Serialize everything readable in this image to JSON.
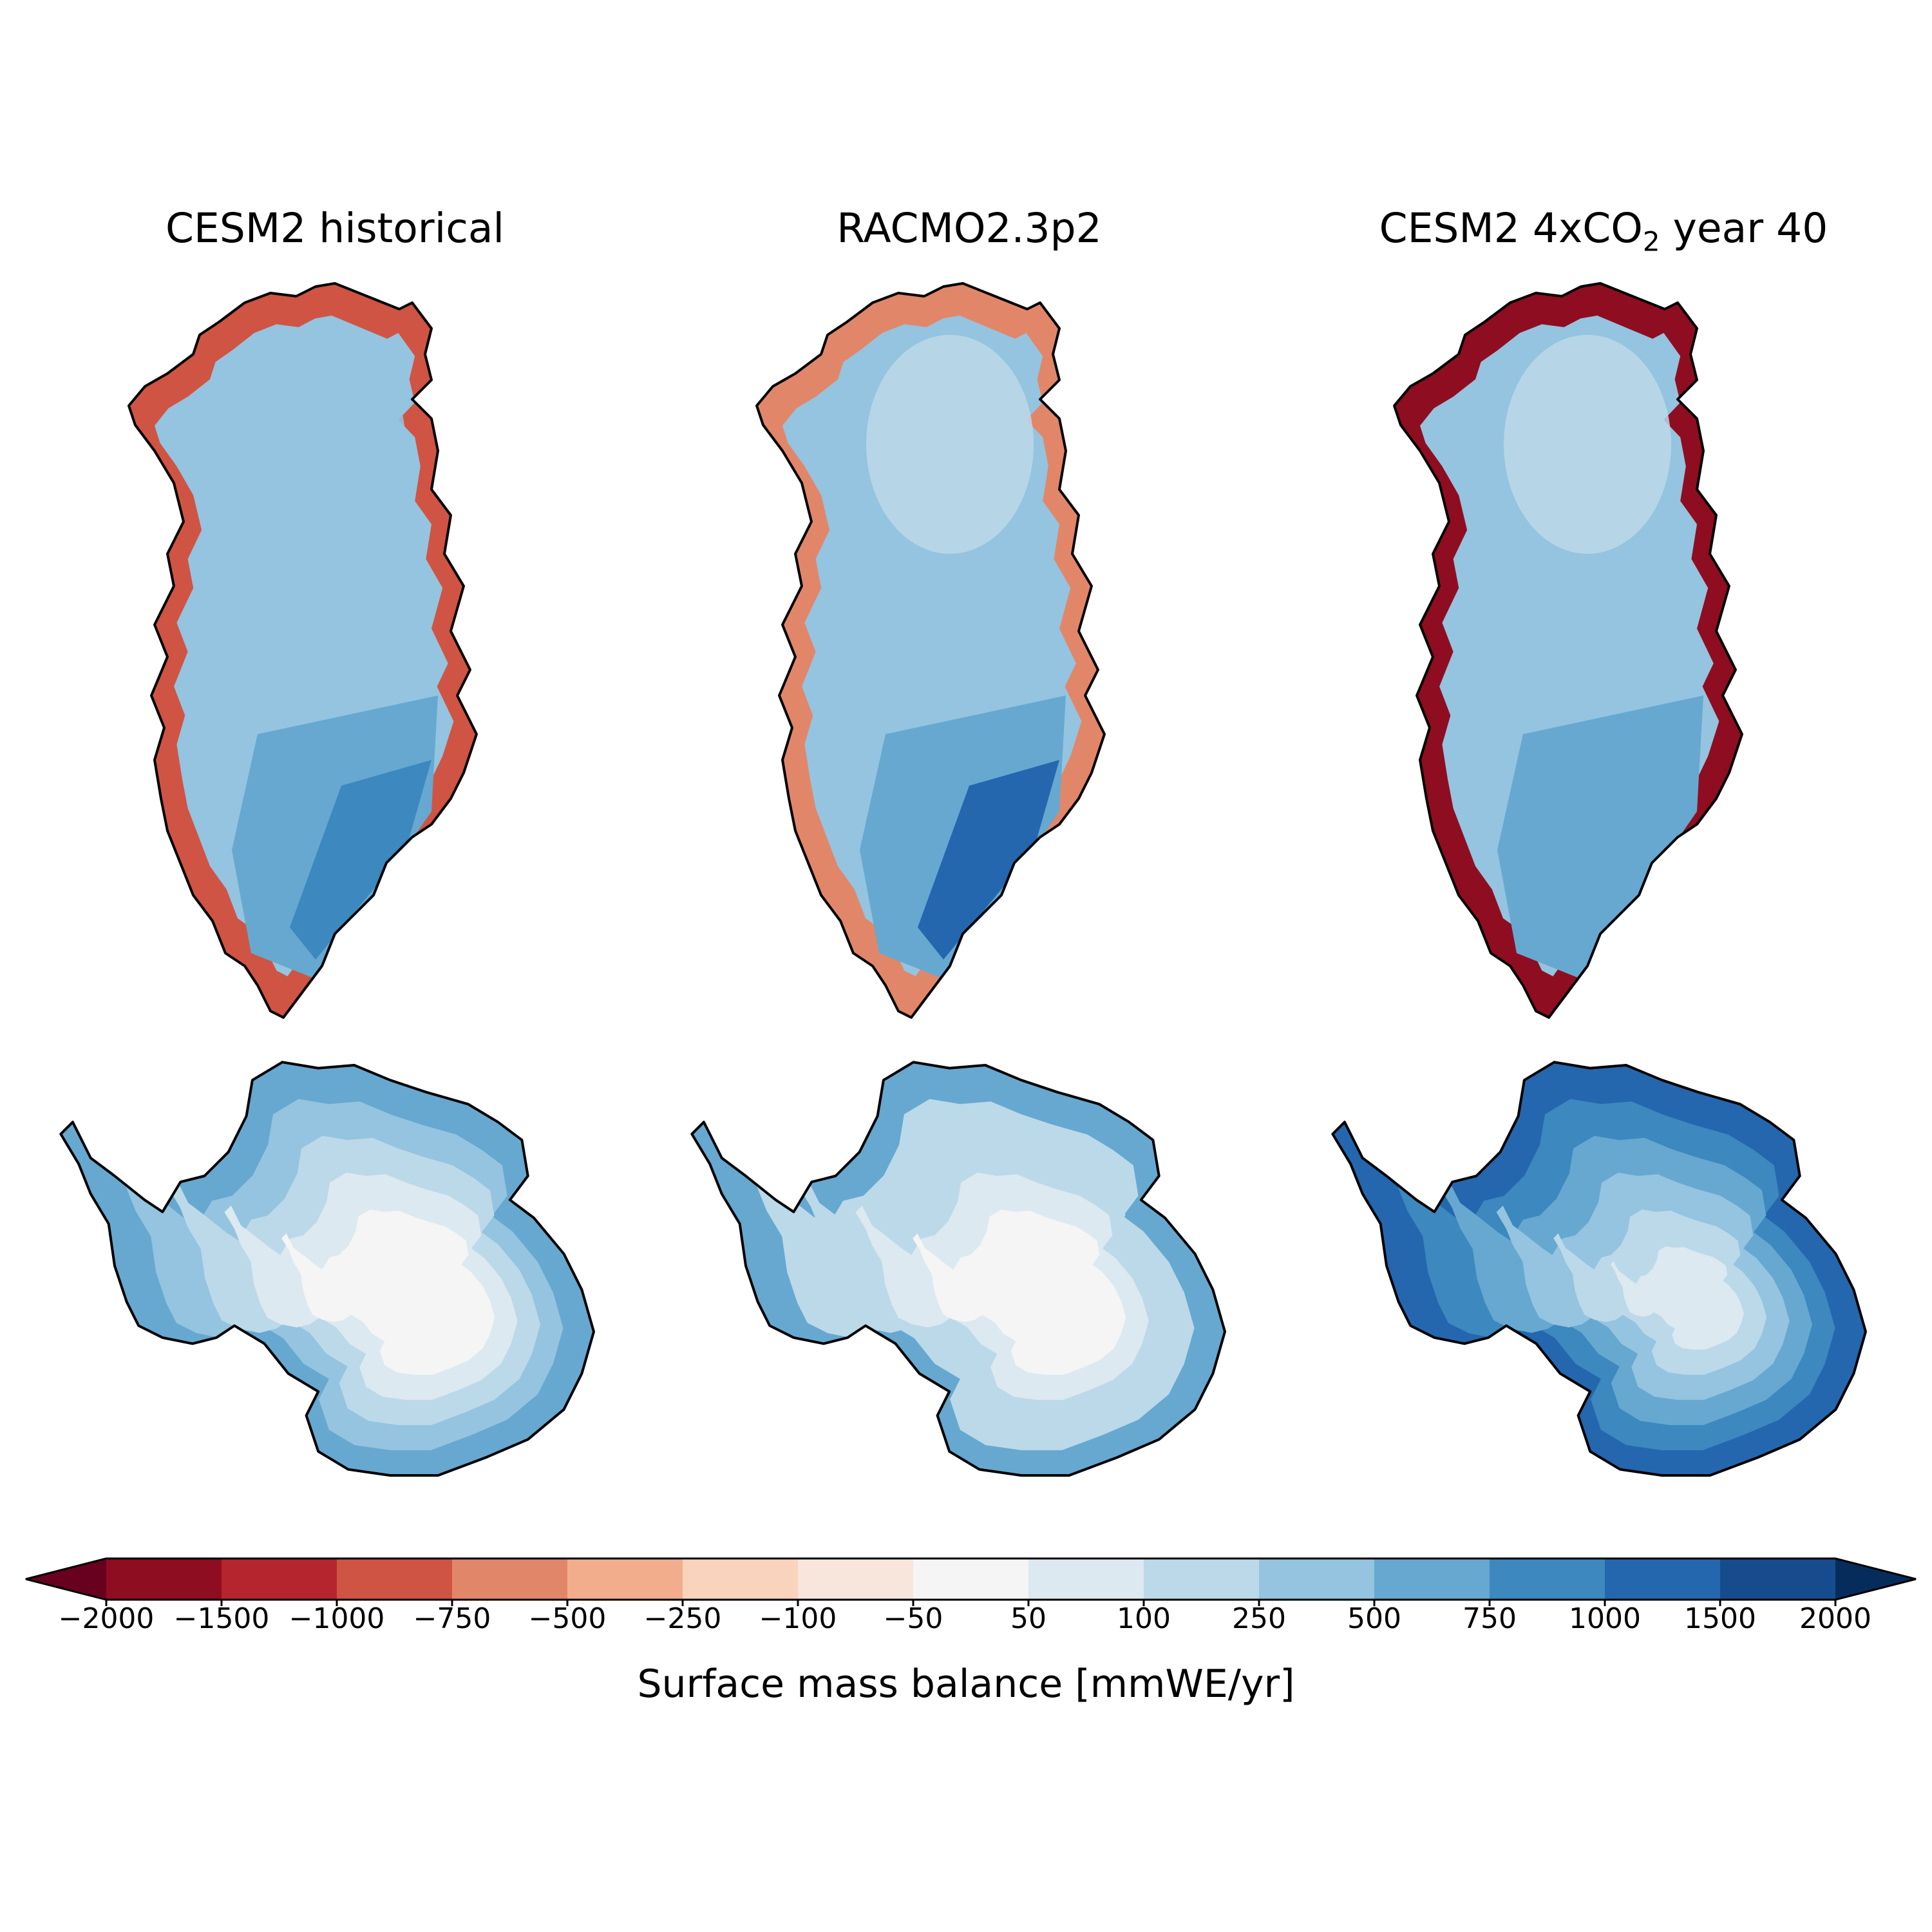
{
  "panels": [
    {
      "id": "cesm2-historical",
      "title": "CESM2 historical",
      "title_sub": "",
      "title_tail": ""
    },
    {
      "id": "racmo",
      "title": "RACMO2.3p2",
      "title_sub": "",
      "title_tail": ""
    },
    {
      "id": "cesm2-4xco2",
      "title": "CESM2 4xCO",
      "title_sub": "2",
      "title_tail": " year 40"
    }
  ],
  "regions": [
    "Greenland",
    "Antarctica"
  ],
  "colorbar": {
    "label": "Surface mass balance [mmWE/yr]",
    "boundaries": [
      "−2000",
      "−1500",
      "−1000",
      "−750",
      "−500",
      "−250",
      "−100",
      "−50",
      "50",
      "100",
      "250",
      "500",
      "750",
      "1000",
      "1500",
      "2000"
    ],
    "colors": [
      "#8f0d20",
      "#b4252d",
      "#d05443",
      "#e2866a",
      "#f2ae8c",
      "#f9d3bc",
      "#f8e6dc",
      "#f4f5f4",
      "#dce9f1",
      "#bcd9e9",
      "#94c4df",
      "#66a8d0",
      "#3c88bf",
      "#2467ae",
      "#164c8d"
    ],
    "extend_low_color": "#68001f",
    "extend_high_color": "#062c5c"
  }
}
